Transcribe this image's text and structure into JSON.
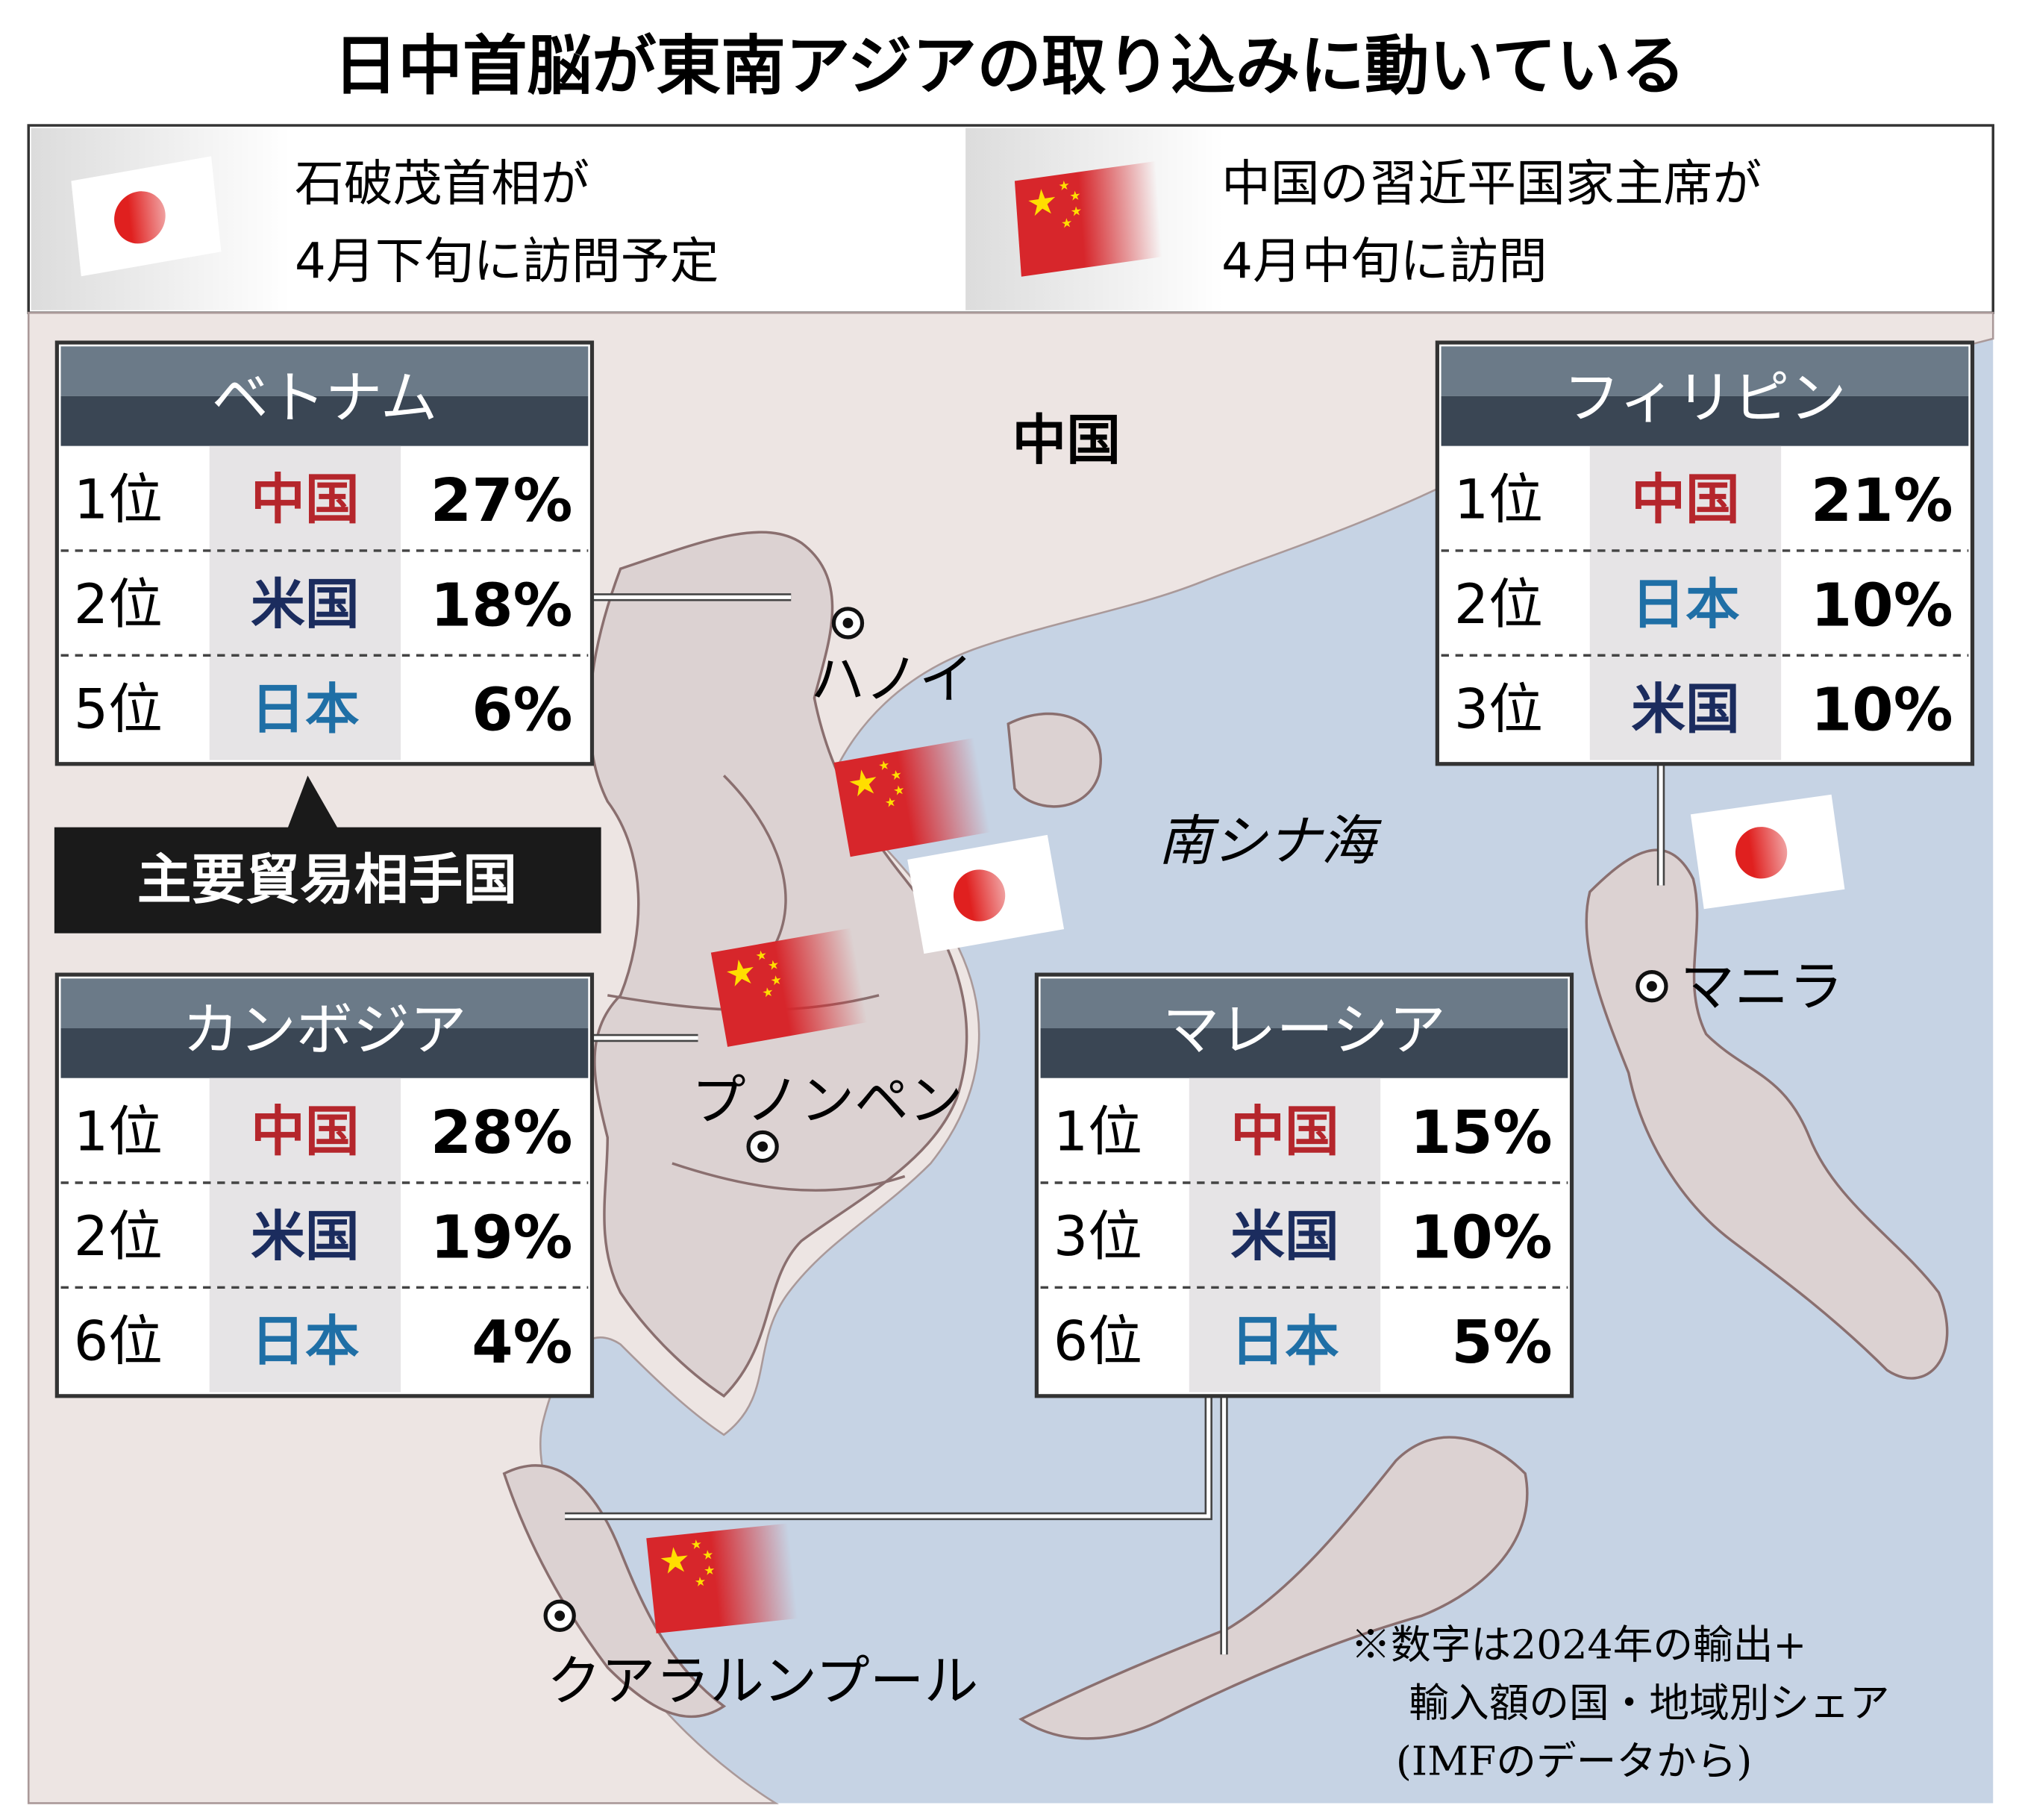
{
  "title": "日中首脳が東南アジアの取り込みに動いている",
  "legend": [
    {
      "lines": [
        "石破茂首相が",
        "4月下旬に訪問予定"
      ]
    },
    {
      "lines": [
        "中国の習近平国家主席が",
        "4月中旬に訪問"
      ]
    }
  ],
  "map_labels": {
    "china": "中国",
    "sea": "南シナ海",
    "hanoi": "ハノイ",
    "phnom_penh": "プノンペン",
    "manila": "マニラ",
    "kuala_lumpur": "クアラルンプール"
  },
  "callout": "主要貿易相手国",
  "tables": [
    {
      "title": "ベトナム",
      "rows": [
        {
          "rank": "1位",
          "partner": "中国",
          "color": "#b5262c",
          "share": "27%"
        },
        {
          "rank": "2位",
          "partner": "米国",
          "color": "#1b2c5e",
          "share": "18%"
        },
        {
          "rank": "5位",
          "partner": "日本",
          "color": "#1f6fa6",
          "share": "6%"
        }
      ]
    },
    {
      "title": "カンボジア",
      "rows": [
        {
          "rank": "1位",
          "partner": "中国",
          "color": "#b5262c",
          "share": "28%"
        },
        {
          "rank": "2位",
          "partner": "米国",
          "color": "#1b2c5e",
          "share": "19%"
        },
        {
          "rank": "6位",
          "partner": "日本",
          "color": "#1f6fa6",
          "share": "4%"
        }
      ]
    },
    {
      "title": "フィリピン",
      "rows": [
        {
          "rank": "1位",
          "partner": "中国",
          "color": "#b5262c",
          "share": "21%"
        },
        {
          "rank": "2位",
          "partner": "日本",
          "color": "#1f6fa6",
          "share": "10%"
        },
        {
          "rank": "3位",
          "partner": "米国",
          "color": "#1b2c5e",
          "share": "10%"
        }
      ]
    },
    {
      "title": "マレーシア",
      "rows": [
        {
          "rank": "1位",
          "partner": "中国",
          "color": "#b5262c",
          "share": "15%"
        },
        {
          "rank": "3位",
          "partner": "米国",
          "color": "#1b2c5e",
          "share": "10%"
        },
        {
          "rank": "6位",
          "partner": "日本",
          "color": "#1f6fa6",
          "share": "5%"
        }
      ]
    }
  ],
  "note": [
    "※数字は2024年の輸出+",
    "輸入額の国・地域別シェア",
    "(IMFのデータから)"
  ]
}
